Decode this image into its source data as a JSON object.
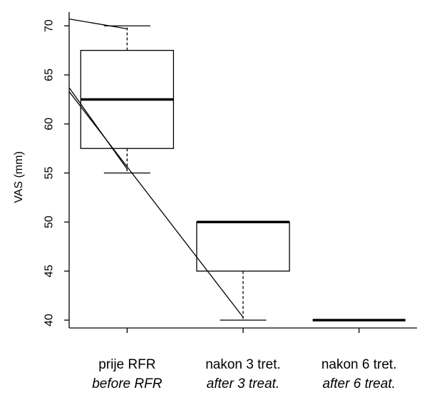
{
  "chart_data": {
    "type": "box",
    "ylabel": "VAS (mm)",
    "ylim": [
      39.2,
      71.4
    ],
    "yticks": [
      40,
      45,
      50,
      55,
      60,
      65,
      70
    ],
    "categories": [
      {
        "label": "prije RFR",
        "sublabel": "before RFR"
      },
      {
        "label": "nakon 3 tret.",
        "sublabel": "after 3 treat."
      },
      {
        "label": "nakon 6 tret.",
        "sublabel": "after 6 treat."
      }
    ],
    "boxes": [
      {
        "min": 55,
        "q1": 57.5,
        "median": 62.5,
        "q3": 67.5,
        "max": 70
      },
      {
        "min": 40,
        "q1": 45,
        "median": 50,
        "q3": 50,
        "max": 50
      },
      {
        "min": 40,
        "q1": 40,
        "median": 40,
        "q3": 40,
        "max": 40
      }
    ],
    "lines": [
      {
        "x": [
          0.5,
          1
        ],
        "y": [
          70.7,
          69.7
        ]
      },
      {
        "x": [
          0.5,
          1
        ],
        "y": [
          63.7,
          55.4
        ]
      },
      {
        "x": [
          0.5,
          2
        ],
        "y": [
          63.3,
          40.3
        ]
      }
    ]
  }
}
